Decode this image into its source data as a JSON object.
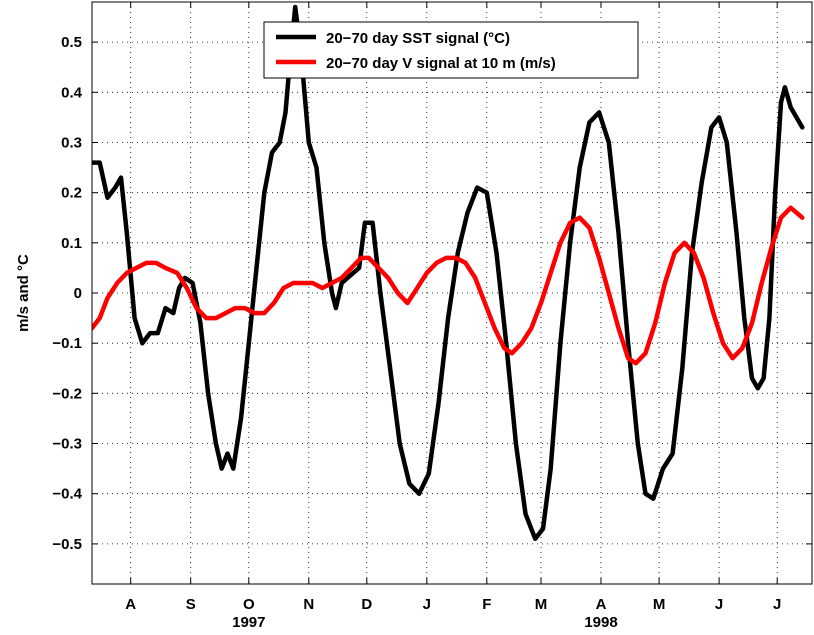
{
  "chart_data": {
    "type": "line",
    "title": "",
    "xlabel": "",
    "ylabel": "m/s and °C",
    "ylim": [
      -0.58,
      0.58
    ],
    "yticks": [
      -0.5,
      -0.4,
      -0.3,
      -0.2,
      -0.1,
      0,
      0.1,
      0.2,
      0.3,
      0.4,
      0.5
    ],
    "ytick_labels": [
      "−0.5",
      "−0.4",
      "−0.3",
      "−0.2",
      "−0.1",
      "0",
      "0.1",
      "0.2",
      "0.3",
      "0.4",
      "0.5"
    ],
    "xlim": [
      "1997-07-12",
      "1998-07-19"
    ],
    "xticks": [
      "1997-08-01",
      "1997-09-01",
      "1997-10-01",
      "1997-11-01",
      "1997-12-01",
      "1998-01-01",
      "1998-02-01",
      "1998-03-01",
      "1998-04-01",
      "1998-05-01",
      "1998-06-01",
      "1998-07-01"
    ],
    "xtick_labels": [
      "A",
      "S",
      "O",
      "N",
      "D",
      "J",
      "F",
      "M",
      "A",
      "M",
      "J",
      "J"
    ],
    "year_labels": [
      {
        "text": "1997",
        "at": "1997-10-01"
      },
      {
        "text": "1998",
        "at": "1998-04-01"
      }
    ],
    "grid": true,
    "legend_position": "top-center",
    "series": [
      {
        "name": "20−70 day SST signal (°C)",
        "color": "#000000",
        "points": [
          [
            "1997-07-12",
            0.26
          ],
          [
            "1997-07-16",
            0.26
          ],
          [
            "1997-07-20",
            0.19
          ],
          [
            "1997-07-24",
            0.21
          ],
          [
            "1997-07-27",
            0.23
          ],
          [
            "1997-07-30",
            0.12
          ],
          [
            "1997-08-03",
            -0.05
          ],
          [
            "1997-08-07",
            -0.1
          ],
          [
            "1997-08-11",
            -0.08
          ],
          [
            "1997-08-15",
            -0.08
          ],
          [
            "1997-08-19",
            -0.03
          ],
          [
            "1997-08-23",
            -0.04
          ],
          [
            "1997-08-26",
            0.01
          ],
          [
            "1997-08-29",
            0.03
          ],
          [
            "1997-09-02",
            0.02
          ],
          [
            "1997-09-06",
            -0.06
          ],
          [
            "1997-09-10",
            -0.2
          ],
          [
            "1997-09-14",
            -0.3
          ],
          [
            "1997-09-17",
            -0.35
          ],
          [
            "1997-09-20",
            -0.32
          ],
          [
            "1997-09-23",
            -0.35
          ],
          [
            "1997-09-27",
            -0.25
          ],
          [
            "1997-10-01",
            -0.1
          ],
          [
            "1997-10-05",
            0.05
          ],
          [
            "1997-10-09",
            0.2
          ],
          [
            "1997-10-13",
            0.28
          ],
          [
            "1997-10-17",
            0.3
          ],
          [
            "1997-10-20",
            0.36
          ],
          [
            "1997-10-22",
            0.45
          ],
          [
            "1997-10-25",
            0.57
          ],
          [
            "1997-10-28",
            0.48
          ],
          [
            "1997-11-01",
            0.3
          ],
          [
            "1997-11-05",
            0.25
          ],
          [
            "1997-11-09",
            0.1
          ],
          [
            "1997-11-13",
            0.0
          ],
          [
            "1997-11-15",
            -0.03
          ],
          [
            "1997-11-18",
            0.02
          ],
          [
            "1997-11-21",
            0.03
          ],
          [
            "1997-11-24",
            0.04
          ],
          [
            "1997-11-27",
            0.05
          ],
          [
            "1997-11-30",
            0.14
          ],
          [
            "1997-12-04",
            0.14
          ],
          [
            "1997-12-08",
            0.0
          ],
          [
            "1997-12-13",
            -0.15
          ],
          [
            "1997-12-18",
            -0.3
          ],
          [
            "1997-12-23",
            -0.38
          ],
          [
            "1997-12-28",
            -0.4
          ],
          [
            "1998-01-02",
            -0.36
          ],
          [
            "1998-01-07",
            -0.22
          ],
          [
            "1998-01-12",
            -0.05
          ],
          [
            "1998-01-17",
            0.08
          ],
          [
            "1998-01-22",
            0.16
          ],
          [
            "1998-01-27",
            0.21
          ],
          [
            "1998-02-01",
            0.2
          ],
          [
            "1998-02-06",
            0.08
          ],
          [
            "1998-02-11",
            -0.1
          ],
          [
            "1998-02-16",
            -0.3
          ],
          [
            "1998-02-21",
            -0.44
          ],
          [
            "1998-02-26",
            -0.49
          ],
          [
            "1998-03-02",
            -0.47
          ],
          [
            "1998-03-06",
            -0.35
          ],
          [
            "1998-03-11",
            -0.1
          ],
          [
            "1998-03-16",
            0.1
          ],
          [
            "1998-03-21",
            0.25
          ],
          [
            "1998-03-26",
            0.34
          ],
          [
            "1998-03-31",
            0.36
          ],
          [
            "1998-04-05",
            0.3
          ],
          [
            "1998-04-10",
            0.12
          ],
          [
            "1998-04-15",
            -0.1
          ],
          [
            "1998-04-20",
            -0.3
          ],
          [
            "1998-04-24",
            -0.4
          ],
          [
            "1998-04-28",
            -0.41
          ],
          [
            "1998-05-03",
            -0.35
          ],
          [
            "1998-05-08",
            -0.32
          ],
          [
            "1998-05-13",
            -0.15
          ],
          [
            "1998-05-18",
            0.08
          ],
          [
            "1998-05-23",
            0.22
          ],
          [
            "1998-05-28",
            0.33
          ],
          [
            "1998-06-01",
            0.35
          ],
          [
            "1998-06-05",
            0.3
          ],
          [
            "1998-06-10",
            0.12
          ],
          [
            "1998-06-14",
            -0.05
          ],
          [
            "1998-06-18",
            -0.17
          ],
          [
            "1998-06-21",
            -0.19
          ],
          [
            "1998-06-24",
            -0.17
          ],
          [
            "1998-06-27",
            -0.05
          ],
          [
            "1998-06-30",
            0.2
          ],
          [
            "1998-07-03",
            0.38
          ],
          [
            "1998-07-05",
            0.41
          ],
          [
            "1998-07-08",
            0.37
          ],
          [
            "1998-07-11",
            0.35
          ],
          [
            "1998-07-14",
            0.33
          ]
        ]
      },
      {
        "name": "20−70 day V signal at 10 m (m/s)",
        "color": "#ff0000",
        "points": [
          [
            "1997-07-12",
            -0.07
          ],
          [
            "1997-07-16",
            -0.05
          ],
          [
            "1997-07-20",
            -0.01
          ],
          [
            "1997-07-25",
            0.02
          ],
          [
            "1997-07-30",
            0.04
          ],
          [
            "1997-08-04",
            0.05
          ],
          [
            "1997-08-09",
            0.06
          ],
          [
            "1997-08-14",
            0.06
          ],
          [
            "1997-08-19",
            0.05
          ],
          [
            "1997-08-25",
            0.04
          ],
          [
            "1997-08-30",
            0.01
          ],
          [
            "1997-09-04",
            -0.03
          ],
          [
            "1997-09-09",
            -0.05
          ],
          [
            "1997-09-14",
            -0.05
          ],
          [
            "1997-09-19",
            -0.04
          ],
          [
            "1997-09-24",
            -0.03
          ],
          [
            "1997-09-29",
            -0.03
          ],
          [
            "1997-10-04",
            -0.04
          ],
          [
            "1997-10-09",
            -0.04
          ],
          [
            "1997-10-14",
            -0.02
          ],
          [
            "1997-10-19",
            0.01
          ],
          [
            "1997-10-24",
            0.02
          ],
          [
            "1997-10-29",
            0.02
          ],
          [
            "1997-11-03",
            0.02
          ],
          [
            "1997-11-08",
            0.01
          ],
          [
            "1997-11-13",
            0.02
          ],
          [
            "1997-11-18",
            0.03
          ],
          [
            "1997-11-23",
            0.05
          ],
          [
            "1997-11-28",
            0.07
          ],
          [
            "1997-12-02",
            0.07
          ],
          [
            "1997-12-07",
            0.05
          ],
          [
            "1997-12-12",
            0.03
          ],
          [
            "1997-12-17",
            0.0
          ],
          [
            "1997-12-22",
            -0.02
          ],
          [
            "1997-12-27",
            0.01
          ],
          [
            "1998-01-01",
            0.04
          ],
          [
            "1998-01-06",
            0.06
          ],
          [
            "1998-01-11",
            0.07
          ],
          [
            "1998-01-16",
            0.07
          ],
          [
            "1998-01-21",
            0.06
          ],
          [
            "1998-01-26",
            0.03
          ],
          [
            "1998-01-31",
            -0.02
          ],
          [
            "1998-02-05",
            -0.07
          ],
          [
            "1998-02-10",
            -0.11
          ],
          [
            "1998-02-14",
            -0.12
          ],
          [
            "1998-02-19",
            -0.1
          ],
          [
            "1998-02-24",
            -0.07
          ],
          [
            "1998-03-01",
            -0.02
          ],
          [
            "1998-03-06",
            0.04
          ],
          [
            "1998-03-11",
            0.1
          ],
          [
            "1998-03-16",
            0.14
          ],
          [
            "1998-03-21",
            0.15
          ],
          [
            "1998-03-26",
            0.13
          ],
          [
            "1998-03-31",
            0.07
          ],
          [
            "1998-04-05",
            0.0
          ],
          [
            "1998-04-10",
            -0.07
          ],
          [
            "1998-04-15",
            -0.13
          ],
          [
            "1998-04-19",
            -0.14
          ],
          [
            "1998-04-24",
            -0.12
          ],
          [
            "1998-04-29",
            -0.06
          ],
          [
            "1998-05-04",
            0.02
          ],
          [
            "1998-05-09",
            0.08
          ],
          [
            "1998-05-14",
            0.1
          ],
          [
            "1998-05-19",
            0.08
          ],
          [
            "1998-05-24",
            0.03
          ],
          [
            "1998-05-29",
            -0.04
          ],
          [
            "1998-06-03",
            -0.1
          ],
          [
            "1998-06-08",
            -0.13
          ],
          [
            "1998-06-13",
            -0.11
          ],
          [
            "1998-06-18",
            -0.06
          ],
          [
            "1998-06-23",
            0.02
          ],
          [
            "1998-06-28",
            0.09
          ],
          [
            "1998-07-03",
            0.15
          ],
          [
            "1998-07-08",
            0.17
          ],
          [
            "1998-07-14",
            0.15
          ]
        ]
      }
    ]
  }
}
